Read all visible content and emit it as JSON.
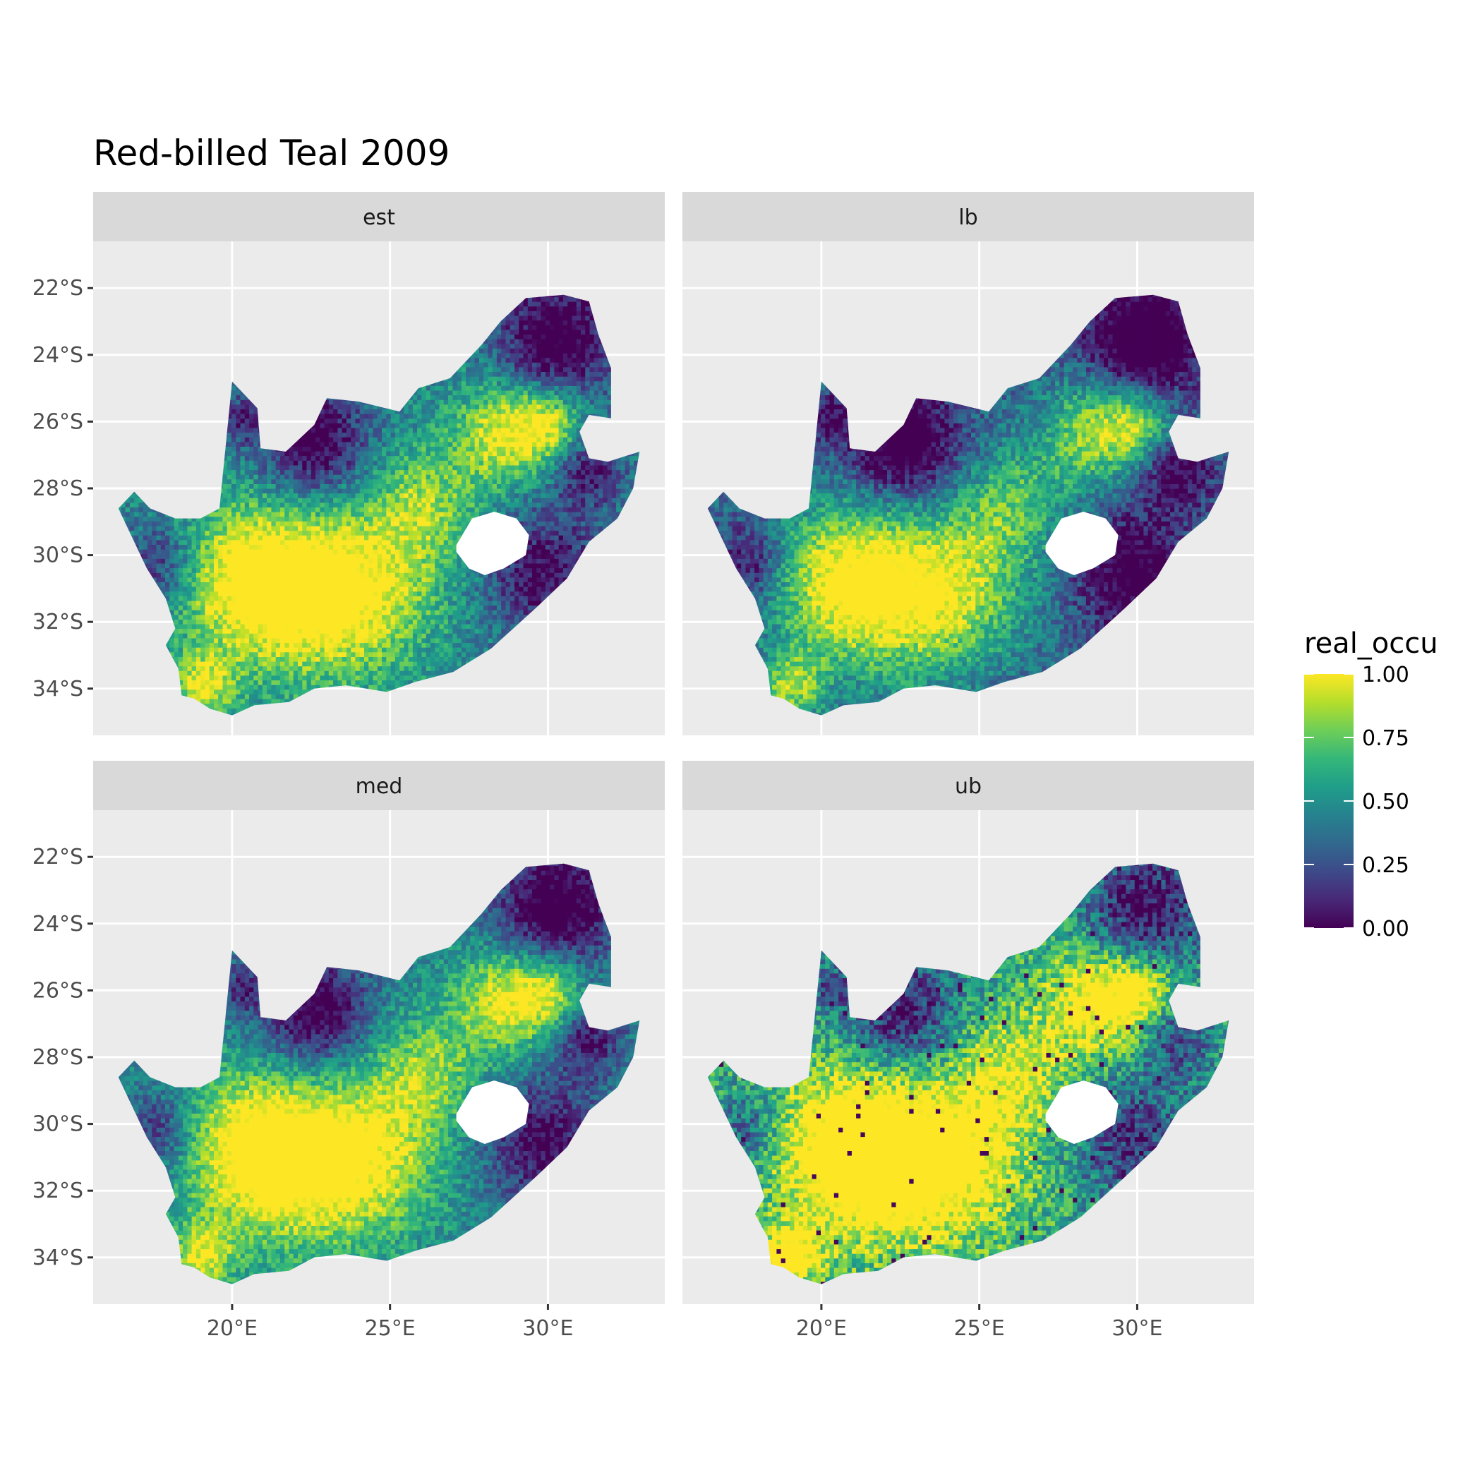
{
  "title": "Red-billed Teal 2009",
  "facets": [
    {
      "id": "est",
      "label": "est"
    },
    {
      "id": "lb",
      "label": "lb"
    },
    {
      "id": "med",
      "label": "med"
    },
    {
      "id": "ub",
      "label": "ub"
    }
  ],
  "axes": {
    "x_ticks": [
      {
        "value": 20,
        "label": "20°E"
      },
      {
        "value": 25,
        "label": "25°E"
      },
      {
        "value": 30,
        "label": "30°E"
      }
    ],
    "y_ticks": [
      {
        "value": -22,
        "label": "22°S"
      },
      {
        "value": -24,
        "label": "24°S"
      },
      {
        "value": -26,
        "label": "26°S"
      },
      {
        "value": -28,
        "label": "28°S"
      },
      {
        "value": -30,
        "label": "30°S"
      },
      {
        "value": -32,
        "label": "32°S"
      },
      {
        "value": -34,
        "label": "34°S"
      }
    ],
    "xlim": [
      15.6,
      33.7
    ],
    "ylim": [
      -35.4,
      -20.6
    ]
  },
  "legend": {
    "title": "real_occu",
    "placement": "right",
    "range": [
      0,
      1
    ],
    "breaks": [
      {
        "value": 0.0,
        "label": "0.00"
      },
      {
        "value": 0.25,
        "label": "0.25"
      },
      {
        "value": 0.5,
        "label": "0.50"
      },
      {
        "value": 0.75,
        "label": "0.75"
      },
      {
        "value": 1.0,
        "label": "1.00"
      }
    ],
    "palette": [
      "#440154",
      "#482878",
      "#3e4a89",
      "#31688e",
      "#26828e",
      "#1f9e89",
      "#35b779",
      "#6ece58",
      "#b5de2b",
      "#fde725"
    ]
  },
  "colors": {
    "panel_background": "#ebebeb",
    "grid": "#ffffff",
    "strip_background": "#d9d9d9",
    "lesotho_hole": "#ffffff"
  }
}
